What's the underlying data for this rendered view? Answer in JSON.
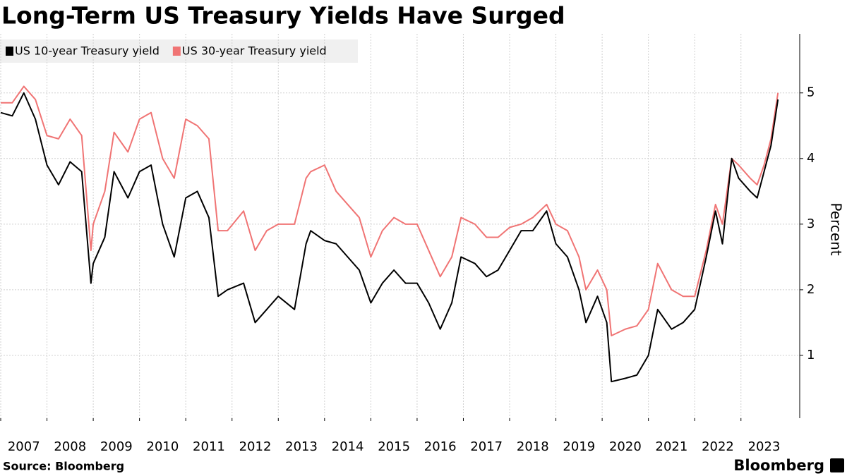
{
  "chart_data": {
    "type": "line",
    "title": "Long-Term US Treasury Yields Have Surged",
    "ylabel": "Percent",
    "source": "Source: Bloomberg",
    "logo": "Bloomberg",
    "x": [
      2007.0,
      2007.25,
      2007.5,
      2007.75,
      2008.0,
      2008.25,
      2008.5,
      2008.75,
      2008.95,
      2009.0,
      2009.25,
      2009.45,
      2009.75,
      2010.0,
      2010.25,
      2010.5,
      2010.75,
      2011.0,
      2011.25,
      2011.5,
      2011.7,
      2011.9,
      2012.25,
      2012.5,
      2012.75,
      2013.0,
      2013.35,
      2013.6,
      2013.7,
      2014.0,
      2014.25,
      2014.5,
      2014.75,
      2015.0,
      2015.25,
      2015.5,
      2015.75,
      2016.0,
      2016.25,
      2016.5,
      2016.75,
      2016.95,
      2017.25,
      2017.5,
      2017.75,
      2018.0,
      2018.25,
      2018.5,
      2018.8,
      2019.0,
      2019.25,
      2019.5,
      2019.65,
      2019.9,
      2020.1,
      2020.2,
      2020.5,
      2020.75,
      2021.0,
      2021.2,
      2021.5,
      2021.75,
      2022.0,
      2022.25,
      2022.45,
      2022.6,
      2022.8,
      2022.95,
      2023.2,
      2023.35,
      2023.5,
      2023.65,
      2023.8
    ],
    "series": [
      {
        "name": "US 10-year Treasury yield",
        "color": "#000000",
        "values": [
          4.7,
          4.65,
          5.0,
          4.6,
          3.9,
          3.6,
          3.95,
          3.8,
          2.1,
          2.4,
          2.8,
          3.8,
          3.4,
          3.8,
          3.9,
          3.0,
          2.5,
          3.4,
          3.5,
          3.1,
          1.9,
          2.0,
          2.1,
          1.5,
          1.7,
          1.9,
          1.7,
          2.7,
          2.9,
          2.75,
          2.7,
          2.5,
          2.3,
          1.8,
          2.1,
          2.3,
          2.1,
          2.1,
          1.8,
          1.4,
          1.8,
          2.5,
          2.4,
          2.2,
          2.3,
          2.6,
          2.9,
          2.9,
          3.2,
          2.7,
          2.5,
          2.0,
          1.5,
          1.9,
          1.5,
          0.6,
          0.65,
          0.7,
          1.0,
          1.7,
          1.4,
          1.5,
          1.7,
          2.5,
          3.2,
          2.7,
          4.0,
          3.7,
          3.5,
          3.4,
          3.8,
          4.2,
          4.9
        ]
      },
      {
        "name": "US 30-year Treasury yield",
        "color": "#f07474",
        "values": [
          4.85,
          4.85,
          5.1,
          4.9,
          4.35,
          4.3,
          4.6,
          4.35,
          2.6,
          3.0,
          3.5,
          4.4,
          4.1,
          4.6,
          4.7,
          4.0,
          3.7,
          4.6,
          4.5,
          4.3,
          2.9,
          2.9,
          3.2,
          2.6,
          2.9,
          3.0,
          3.0,
          3.7,
          3.8,
          3.9,
          3.5,
          3.3,
          3.1,
          2.5,
          2.9,
          3.1,
          3.0,
          3.0,
          2.6,
          2.2,
          2.5,
          3.1,
          3.0,
          2.8,
          2.8,
          2.95,
          3.0,
          3.1,
          3.3,
          3.0,
          2.9,
          2.5,
          2.0,
          2.3,
          2.0,
          1.3,
          1.4,
          1.45,
          1.7,
          2.4,
          2.0,
          1.9,
          1.9,
          2.6,
          3.3,
          3.0,
          4.0,
          3.9,
          3.7,
          3.6,
          3.9,
          4.3,
          5.0
        ]
      }
    ],
    "xlim": [
      2007,
      2024.27
    ],
    "xticks": [
      2007,
      2008,
      2009,
      2010,
      2011,
      2012,
      2013,
      2014,
      2015,
      2016,
      2017,
      2018,
      2019,
      2020,
      2021,
      2022,
      2023
    ],
    "ylim": [
      0,
      5.9
    ],
    "yticks": [
      1,
      2,
      3,
      4,
      5
    ],
    "grid": true
  }
}
